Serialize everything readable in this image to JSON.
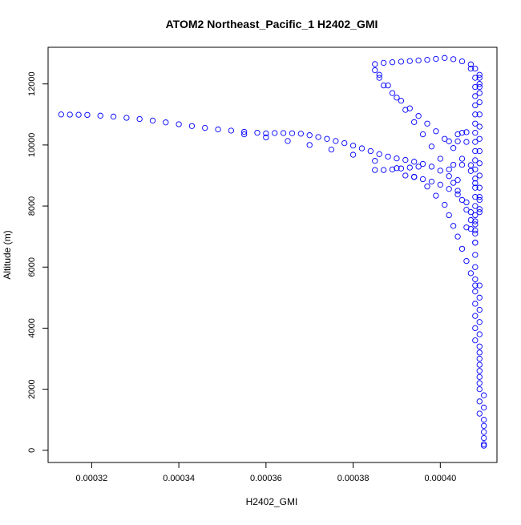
{
  "chart_data": {
    "type": "scatter",
    "title": "ATOM2 Northeast_Pacific_1 H2402_GMI",
    "xlabel": "H2402_GMI",
    "ylabel": "Altitude (m)",
    "xlim": [
      0.00031,
      0.000413
    ],
    "ylim": [
      -400,
      13200
    ],
    "x_ticks": [
      0.00032,
      0.00034,
      0.00036,
      0.00038,
      0.0004
    ],
    "x_tick_labels": [
      "0.00032",
      "0.00034",
      "0.00036",
      "0.00038",
      "0.00040"
    ],
    "y_ticks": [
      0,
      2000,
      4000,
      6000,
      8000,
      10000,
      12000
    ],
    "y_tick_labels": [
      "0",
      "2000",
      "4000",
      "6000",
      "8000",
      "10000",
      "12000"
    ],
    "marker": "open-circle",
    "color": "#0000ff",
    "grid": false,
    "series": [
      {
        "name": "",
        "points": [
          [
            0.000313,
            11000
          ],
          [
            0.000315,
            10995
          ],
          [
            0.000317,
            10990
          ],
          [
            0.000319,
            10985
          ],
          [
            0.000322,
            10960
          ],
          [
            0.000325,
            10930
          ],
          [
            0.000328,
            10890
          ],
          [
            0.000331,
            10850
          ],
          [
            0.000334,
            10800
          ],
          [
            0.000337,
            10740
          ],
          [
            0.00034,
            10680
          ],
          [
            0.000343,
            10620
          ],
          [
            0.000346,
            10560
          ],
          [
            0.000349,
            10510
          ],
          [
            0.000352,
            10470
          ],
          [
            0.000355,
            10430
          ],
          [
            0.000358,
            10400
          ],
          [
            0.00036,
            10380
          ],
          [
            0.000362,
            10390
          ],
          [
            0.000364,
            10390
          ],
          [
            0.000366,
            10385
          ],
          [
            0.000368,
            10370
          ],
          [
            0.00037,
            10320
          ],
          [
            0.000372,
            10260
          ],
          [
            0.000374,
            10200
          ],
          [
            0.000376,
            10130
          ],
          [
            0.000378,
            10060
          ],
          [
            0.00038,
            9980
          ],
          [
            0.000382,
            9890
          ],
          [
            0.000384,
            9800
          ],
          [
            0.000386,
            9700
          ],
          [
            0.000388,
            9620
          ],
          [
            0.00039,
            9560
          ],
          [
            0.000392,
            9510
          ],
          [
            0.000394,
            9450
          ],
          [
            0.000396,
            9380
          ],
          [
            0.000398,
            9290
          ],
          [
            0.0004,
            9160
          ],
          [
            0.000402,
            8980
          ],
          [
            0.000403,
            8760
          ],
          [
            0.000404,
            8500
          ],
          [
            0.000405,
            8200
          ],
          [
            0.000406,
            7880
          ],
          [
            0.000407,
            7540
          ],
          [
            0.000408,
            7200
          ],
          [
            0.000408,
            6800
          ],
          [
            0.000408,
            6400
          ],
          [
            0.000408,
            6000
          ],
          [
            0.000408,
            5600
          ],
          [
            0.000408,
            5200
          ],
          [
            0.000408,
            4800
          ],
          [
            0.000408,
            4400
          ],
          [
            0.000408,
            4000
          ],
          [
            0.000408,
            3600
          ],
          [
            0.000409,
            3200
          ],
          [
            0.000409,
            2800
          ],
          [
            0.000409,
            2400
          ],
          [
            0.000409,
            2000
          ],
          [
            0.000409,
            1600
          ],
          [
            0.000409,
            1200
          ],
          [
            0.00041,
            800
          ],
          [
            0.00041,
            400
          ],
          [
            0.00041,
            150
          ],
          [
            0.000385,
            9180
          ],
          [
            0.000387,
            9180
          ],
          [
            0.000389,
            9200
          ],
          [
            0.000391,
            9230
          ],
          [
            0.000393,
            9260
          ],
          [
            0.000395,
            9290
          ],
          [
            0.000392,
            9000
          ],
          [
            0.000394,
            8950
          ],
          [
            0.000396,
            8880
          ],
          [
            0.000398,
            8800
          ],
          [
            0.0004,
            8700
          ],
          [
            0.000402,
            8560
          ],
          [
            0.000404,
            8380
          ],
          [
            0.000406,
            8120
          ],
          [
            0.000407,
            7800
          ],
          [
            0.000408,
            7500
          ],
          [
            0.000355,
            10350
          ],
          [
            0.00036,
            10250
          ],
          [
            0.000365,
            10130
          ],
          [
            0.00037,
            10000
          ],
          [
            0.000375,
            9850
          ],
          [
            0.00038,
            9680
          ],
          [
            0.000385,
            9480
          ],
          [
            0.00039,
            9240
          ],
          [
            0.000394,
            8960
          ],
          [
            0.000397,
            8640
          ],
          [
            0.000399,
            8340
          ],
          [
            0.000401,
            8040
          ],
          [
            0.000402,
            7700
          ],
          [
            0.000403,
            7350
          ],
          [
            0.000404,
            7000
          ],
          [
            0.000405,
            6600
          ],
          [
            0.000406,
            6200
          ],
          [
            0.000407,
            5800
          ],
          [
            0.000408,
            5400
          ],
          [
            0.000385,
            12650
          ],
          [
            0.000387,
            12690
          ],
          [
            0.000389,
            12710
          ],
          [
            0.000391,
            12730
          ],
          [
            0.000393,
            12750
          ],
          [
            0.000395,
            12770
          ],
          [
            0.000397,
            12790
          ],
          [
            0.000399,
            12820
          ],
          [
            0.000401,
            12850
          ],
          [
            0.000403,
            12810
          ],
          [
            0.000405,
            12740
          ],
          [
            0.000407,
            12640
          ],
          [
            0.000408,
            12500
          ],
          [
            0.000409,
            12300
          ],
          [
            0.000409,
            12000
          ],
          [
            0.000409,
            11700
          ],
          [
            0.000409,
            11400
          ],
          [
            0.000409,
            11000
          ],
          [
            0.000409,
            10600
          ],
          [
            0.000409,
            10200
          ],
          [
            0.000409,
            9800
          ],
          [
            0.000409,
            9400
          ],
          [
            0.000409,
            9000
          ],
          [
            0.000409,
            8600
          ],
          [
            0.000409,
            8200
          ],
          [
            0.000409,
            7800
          ],
          [
            0.000385,
            12450
          ],
          [
            0.000386,
            12200
          ],
          [
            0.000387,
            11950
          ],
          [
            0.000389,
            11700
          ],
          [
            0.000391,
            11450
          ],
          [
            0.000393,
            11200
          ],
          [
            0.000395,
            10950
          ],
          [
            0.000397,
            10700
          ],
          [
            0.000399,
            10450
          ],
          [
            0.000401,
            10200
          ],
          [
            0.000403,
            9900
          ],
          [
            0.000405,
            9550
          ],
          [
            0.000407,
            9150
          ],
          [
            0.000408,
            8750
          ],
          [
            0.000409,
            8300
          ],
          [
            0.000409,
            7900
          ],
          [
            0.000386,
            12300
          ],
          [
            0.000388,
            11950
          ],
          [
            0.00039,
            11550
          ],
          [
            0.000392,
            11150
          ],
          [
            0.000394,
            10750
          ],
          [
            0.000396,
            10350
          ],
          [
            0.000398,
            9950
          ],
          [
            0.0004,
            9550
          ],
          [
            0.000402,
            9200
          ],
          [
            0.000404,
            8850
          ],
          [
            0.000407,
            12500
          ],
          [
            0.000408,
            12200
          ],
          [
            0.000408,
            11900
          ],
          [
            0.000408,
            11600
          ],
          [
            0.000408,
            11300
          ],
          [
            0.000408,
            11000
          ],
          [
            0.000408,
            10700
          ],
          [
            0.000408,
            10400
          ],
          [
            0.000408,
            10100
          ],
          [
            0.000408,
            9800
          ],
          [
            0.000408,
            9500
          ],
          [
            0.000408,
            9200
          ],
          [
            0.000408,
            8900
          ],
          [
            0.000408,
            8600
          ],
          [
            0.000408,
            8300
          ],
          [
            0.000408,
            8000
          ],
          [
            0.000408,
            7700
          ],
          [
            0.000408,
            7400
          ],
          [
            0.000408,
            7100
          ],
          [
            0.000408,
            6800
          ],
          [
            0.000402,
            10120
          ],
          [
            0.000404,
            10120
          ],
          [
            0.000406,
            10100
          ],
          [
            0.000404,
            10350
          ],
          [
            0.000405,
            10400
          ],
          [
            0.000406,
            10420
          ],
          [
            0.000403,
            9350
          ],
          [
            0.000405,
            9350
          ],
          [
            0.000407,
            9340
          ],
          [
            0.000406,
            7300
          ],
          [
            0.000407,
            7250
          ],
          [
            0.000409,
            12200
          ],
          [
            0.000409,
            11900
          ],
          [
            0.000409,
            5400
          ],
          [
            0.000409,
            5000
          ],
          [
            0.000409,
            4600
          ],
          [
            0.000409,
            4200
          ],
          [
            0.000409,
            3800
          ],
          [
            0.000409,
            3400
          ],
          [
            0.000409,
            3000
          ],
          [
            0.000409,
            2600
          ],
          [
            0.000409,
            2200
          ],
          [
            0.00041,
            1800
          ],
          [
            0.00041,
            1400
          ],
          [
            0.00041,
            1000
          ],
          [
            0.00041,
            600
          ],
          [
            0.00041,
            200
          ]
        ]
      }
    ]
  }
}
